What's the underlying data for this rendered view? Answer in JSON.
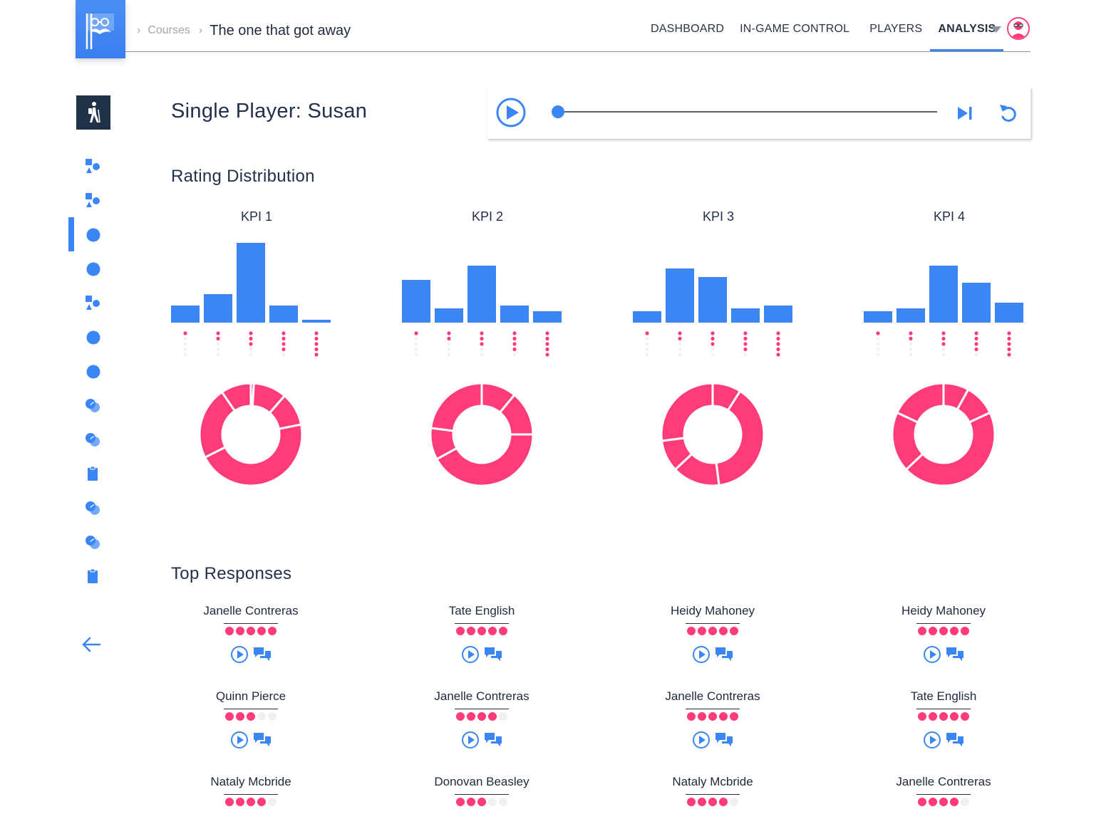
{
  "breadcrumb": {
    "courses": "Courses",
    "current": "The one that got away"
  },
  "nav": [
    "DASHBOARD",
    "IN-GAME CONTROL",
    "PLAYERS",
    "ANALYSIS"
  ],
  "nav_active": "ANALYSIS",
  "page_title": "Single Player: Susan",
  "player": {
    "progress": 0
  },
  "sections": {
    "rating": "Rating Distribution",
    "responses": "Top Responses"
  },
  "colors": {
    "accent": "#3a86f5",
    "rating": "#ff3b7a",
    "sidebar_dark": "#1f3247"
  },
  "sidebar_icons": [
    "hiker-icon",
    "shapes-icon",
    "shapes-icon",
    "circle-icon",
    "circle-icon",
    "shapes-icon",
    "circle-icon",
    "circle-icon",
    "overlap-circles-icon",
    "overlap-circles-icon",
    "clipboard-icon",
    "overlap-circles-icon",
    "overlap-circles-icon",
    "clipboard-icon",
    "arrow-left-icon"
  ],
  "kpis": [
    {
      "title": "KPI 1",
      "values": [
        3,
        5,
        14,
        3,
        0.5
      ],
      "donut": [
        1,
        11,
        11,
        48,
        24,
        10
      ]
    },
    {
      "title": "KPI 2",
      "values": [
        7.5,
        2.5,
        10,
        3,
        2
      ],
      "donut": [
        11,
        14,
        42,
        10,
        23
      ]
    },
    {
      "title": "KPI 3",
      "values": [
        2,
        9.5,
        8,
        2.5,
        3
      ],
      "donut": [
        9,
        39,
        15,
        10,
        27
      ]
    },
    {
      "title": "KPI 4",
      "values": [
        2,
        2.5,
        10,
        7,
        3.5
      ],
      "donut": [
        8,
        10,
        45,
        19,
        18
      ]
    }
  ],
  "responses": [
    [
      {
        "name": "Janelle Contreras",
        "rating": 5
      },
      {
        "name": "Quinn Pierce",
        "rating": 3
      },
      {
        "name": "Nataly Mcbride",
        "rating": 4
      }
    ],
    [
      {
        "name": "Tate English",
        "rating": 5
      },
      {
        "name": "Janelle Contreras",
        "rating": 4
      },
      {
        "name": "Donovan Beasley",
        "rating": 3
      }
    ],
    [
      {
        "name": "Heidy Mahoney",
        "rating": 5
      },
      {
        "name": "Janelle Contreras",
        "rating": 5
      },
      {
        "name": "Nataly Mcbride",
        "rating": 4
      }
    ],
    [
      {
        "name": "Heidy Mahoney",
        "rating": 5
      },
      {
        "name": "Tate English",
        "rating": 5
      },
      {
        "name": "Janelle Contreras",
        "rating": 4
      }
    ]
  ]
}
